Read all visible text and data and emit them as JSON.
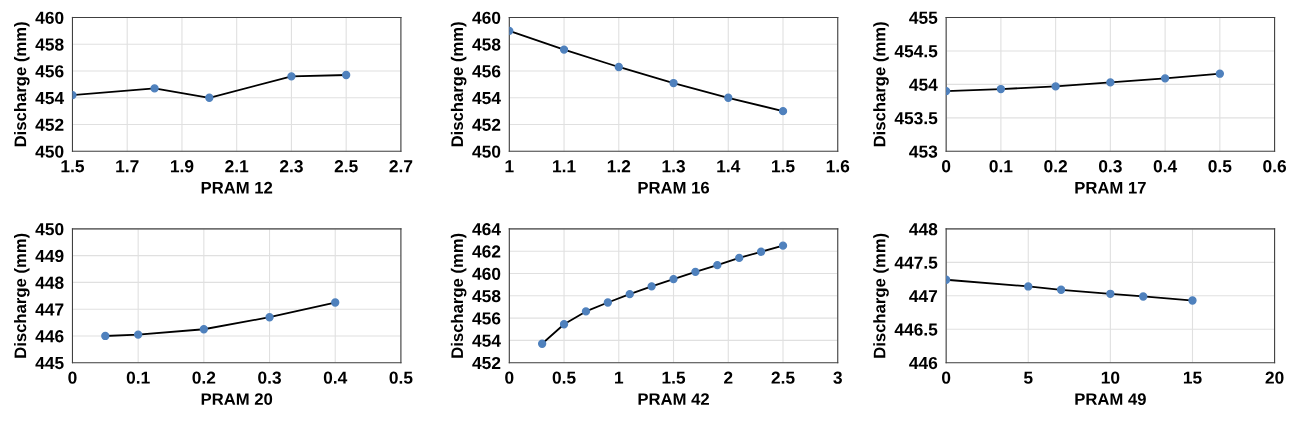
{
  "chart_data": [
    {
      "type": "line",
      "xlabel": "PRAM 12",
      "ylabel": "Discharge (mm)",
      "xlim": [
        1.5,
        2.7
      ],
      "xticks": [
        1.5,
        1.7,
        1.9,
        2.1,
        2.3,
        2.5,
        2.7
      ],
      "ylim": [
        450,
        460
      ],
      "yticks": [
        450,
        452,
        454,
        456,
        458,
        460
      ],
      "grid": true,
      "marker": "circle",
      "line_style": "solid",
      "series": [
        {
          "color": "#4f81bd",
          "x": [
            1.5,
            1.8,
            2.0,
            2.3,
            2.5
          ],
          "values": [
            454.2,
            454.7,
            454.0,
            455.6,
            455.7
          ]
        }
      ]
    },
    {
      "type": "line",
      "xlabel": "PRAM 16",
      "ylabel": "Discharge (mm)",
      "xlim": [
        1,
        1.6
      ],
      "xticks": [
        1,
        1.1,
        1.2,
        1.3,
        1.4,
        1.5,
        1.6
      ],
      "ylim": [
        450,
        460
      ],
      "yticks": [
        450,
        452,
        454,
        456,
        458,
        460
      ],
      "grid": true,
      "marker": "circle",
      "line_style": "solid",
      "series": [
        {
          "color": "#4f81bd",
          "x": [
            1.0,
            1.1,
            1.2,
            1.3,
            1.4,
            1.5
          ],
          "values": [
            459.0,
            457.6,
            456.3,
            455.1,
            454.0,
            453.0
          ]
        }
      ]
    },
    {
      "type": "line",
      "xlabel": "PRAM 17",
      "ylabel": "Discharge (mm)",
      "xlim": [
        0,
        0.6
      ],
      "xticks": [
        0,
        0.1,
        0.2,
        0.3,
        0.4,
        0.5,
        0.6
      ],
      "ylim": [
        453,
        455
      ],
      "yticks": [
        453,
        453.5,
        454,
        454.5,
        455
      ],
      "grid": true,
      "marker": "circle",
      "line_style": "solid",
      "series": [
        {
          "color": "#4f81bd",
          "x": [
            0,
            0.1,
            0.2,
            0.3,
            0.4,
            0.5
          ],
          "values": [
            453.9,
            453.93,
            453.97,
            454.03,
            454.09,
            454.16
          ]
        }
      ]
    },
    {
      "type": "line",
      "xlabel": "PRAM 20",
      "ylabel": "Discharge (mm)",
      "xlim": [
        0,
        0.5
      ],
      "xticks": [
        0,
        0.1,
        0.2,
        0.3,
        0.4,
        0.5
      ],
      "ylim": [
        445,
        450
      ],
      "yticks": [
        445,
        446,
        447,
        448,
        449,
        450
      ],
      "grid": true,
      "marker": "circle",
      "line_style": "solid",
      "series": [
        {
          "color": "#4f81bd",
          "x": [
            0.05,
            0.1,
            0.2,
            0.3,
            0.4
          ],
          "values": [
            446.0,
            446.05,
            446.25,
            446.7,
            447.25
          ]
        }
      ]
    },
    {
      "type": "line",
      "xlabel": "PRAM 42",
      "ylabel": "Discharge (mm)",
      "xlim": [
        0,
        3
      ],
      "xticks": [
        0,
        0.5,
        1,
        1.5,
        2,
        2.5,
        3
      ],
      "ylim": [
        452,
        464
      ],
      "yticks": [
        452,
        454,
        456,
        458,
        460,
        462,
        464
      ],
      "grid": true,
      "marker": "circle",
      "line_style": "solid",
      "series": [
        {
          "color": "#4f81bd",
          "x": [
            0.3,
            0.5,
            0.7,
            0.9,
            1.1,
            1.3,
            1.5,
            1.7,
            1.9,
            2.1,
            2.3,
            2.5
          ],
          "values": [
            453.7,
            455.45,
            456.6,
            457.4,
            458.15,
            458.85,
            459.5,
            460.15,
            460.75,
            461.4,
            461.95,
            462.5
          ]
        }
      ]
    },
    {
      "type": "line",
      "xlabel": "PRAM 49",
      "ylabel": "Discharge (mm)",
      "xlim": [
        0,
        20
      ],
      "xticks": [
        0,
        5,
        10,
        15,
        20
      ],
      "ylim": [
        446,
        448
      ],
      "yticks": [
        446,
        446.5,
        447,
        447.5,
        448
      ],
      "grid": true,
      "marker": "circle",
      "line_style": "solid",
      "series": [
        {
          "color": "#4f81bd",
          "x": [
            0,
            5,
            7,
            10,
            12,
            15
          ],
          "values": [
            447.24,
            447.14,
            447.09,
            447.03,
            446.99,
            446.93
          ]
        }
      ]
    }
  ]
}
